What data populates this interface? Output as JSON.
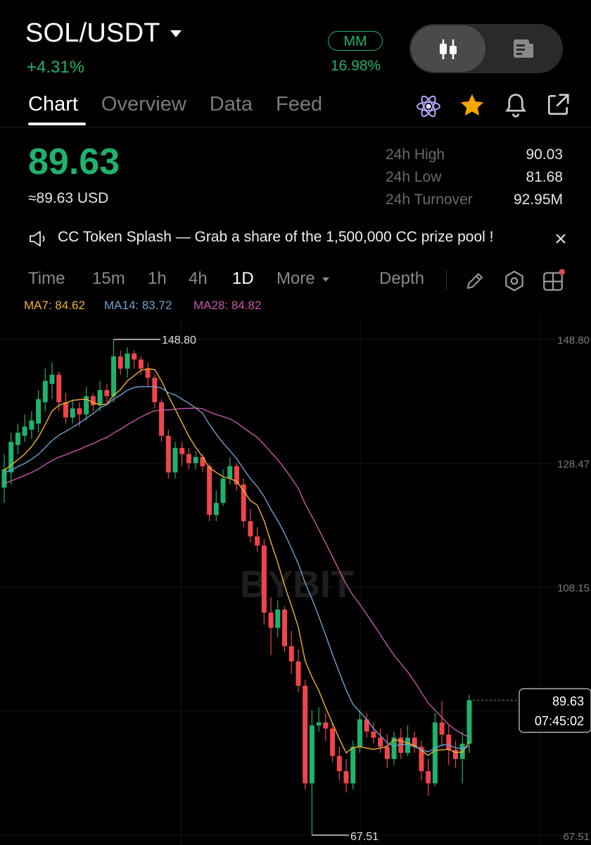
{
  "header": {
    "pair": "SOL/USDT",
    "change": "+4.31%",
    "mm_label": "MM",
    "mm_value": "16.98%"
  },
  "tabs": [
    {
      "label": "Chart",
      "active": true
    },
    {
      "label": "Overview",
      "active": false
    },
    {
      "label": "Data",
      "active": false
    },
    {
      "label": "Feed",
      "active": false
    }
  ],
  "ticker": {
    "price": "89.63",
    "usd": "≈89.63 USD",
    "high_label": "24h High",
    "high": "90.03",
    "low_label": "24h Low",
    "low": "81.68",
    "turnover_label": "24h Turnover",
    "turnover": "92.95M"
  },
  "banner": "CC Token Splash — Grab a share of the 1,500,000 CC prize pool !",
  "timeframes": [
    {
      "label": "Time",
      "active": false
    },
    {
      "label": "15m",
      "active": false
    },
    {
      "label": "1h",
      "active": false
    },
    {
      "label": "4h",
      "active": false
    },
    {
      "label": "1D",
      "active": true
    },
    {
      "label": "More",
      "active": false
    }
  ],
  "depth_label": "Depth",
  "ma": {
    "ma7": "MA7: 84.62",
    "ma14": "MA14: 83.72",
    "ma28": "MA28: 84.82"
  },
  "colors": {
    "up": "#20b26c",
    "down": "#ef454a",
    "ma7": "#f0b429",
    "ma14": "#6ea2cf",
    "ma28": "#c857a6"
  },
  "watermark": "BYBIT",
  "chart_data": {
    "type": "candlestick",
    "y_ticks": [
      "148.80",
      "128.47",
      "108.15",
      "67.51"
    ],
    "ylim": [
      67.51,
      148.8
    ],
    "high_marker": "148.80",
    "low_marker": "67.51",
    "last_price": "89.63",
    "countdown": "07:45:02",
    "candles": [
      {
        "o": 124.5,
        "c": 127.5,
        "h": 130.0,
        "l": 122.0
      },
      {
        "o": 127.0,
        "c": 132.0,
        "h": 133.5,
        "l": 125.0
      },
      {
        "o": 131.5,
        "c": 133.5,
        "h": 135.0,
        "l": 130.0
      },
      {
        "o": 133.0,
        "c": 134.5,
        "h": 136.5,
        "l": 132.0
      },
      {
        "o": 134.0,
        "c": 135.5,
        "h": 137.0,
        "l": 132.5
      },
      {
        "o": 135.0,
        "c": 139.0,
        "h": 140.5,
        "l": 133.5
      },
      {
        "o": 138.5,
        "c": 142.0,
        "h": 144.0,
        "l": 137.0
      },
      {
        "o": 141.5,
        "c": 143.0,
        "h": 145.0,
        "l": 139.0
      },
      {
        "o": 143.0,
        "c": 138.5,
        "h": 143.5,
        "l": 137.0
      },
      {
        "o": 138.5,
        "c": 136.0,
        "h": 140.0,
        "l": 135.0
      },
      {
        "o": 136.0,
        "c": 137.5,
        "h": 139.0,
        "l": 135.0
      },
      {
        "o": 137.5,
        "c": 136.5,
        "h": 138.5,
        "l": 134.5
      },
      {
        "o": 136.5,
        "c": 139.5,
        "h": 141.0,
        "l": 135.5
      },
      {
        "o": 139.5,
        "c": 138.0,
        "h": 140.0,
        "l": 137.0
      },
      {
        "o": 138.0,
        "c": 140.5,
        "h": 142.0,
        "l": 137.0
      },
      {
        "o": 140.5,
        "c": 139.5,
        "h": 141.5,
        "l": 138.5
      },
      {
        "o": 139.5,
        "c": 146.0,
        "h": 148.8,
        "l": 138.5
      },
      {
        "o": 146.0,
        "c": 144.0,
        "h": 147.0,
        "l": 143.0
      },
      {
        "o": 144.0,
        "c": 146.5,
        "h": 147.5,
        "l": 142.5
      },
      {
        "o": 146.5,
        "c": 145.5,
        "h": 147.0,
        "l": 144.0
      },
      {
        "o": 145.5,
        "c": 144.0,
        "h": 146.0,
        "l": 143.0
      },
      {
        "o": 144.0,
        "c": 142.5,
        "h": 145.0,
        "l": 141.0
      },
      {
        "o": 142.5,
        "c": 138.5,
        "h": 143.0,
        "l": 137.5
      },
      {
        "o": 138.5,
        "c": 133.0,
        "h": 139.0,
        "l": 132.0
      },
      {
        "o": 133.0,
        "c": 127.0,
        "h": 134.0,
        "l": 126.0
      },
      {
        "o": 127.0,
        "c": 131.0,
        "h": 132.0,
        "l": 126.0
      },
      {
        "o": 131.0,
        "c": 130.0,
        "h": 132.0,
        "l": 128.0
      },
      {
        "o": 130.0,
        "c": 128.5,
        "h": 131.0,
        "l": 127.5
      },
      {
        "o": 128.5,
        "c": 129.5,
        "h": 130.5,
        "l": 127.5
      },
      {
        "o": 129.5,
        "c": 128.0,
        "h": 130.0,
        "l": 127.0
      },
      {
        "o": 128.0,
        "c": 120.0,
        "h": 128.5,
        "l": 119.0
      },
      {
        "o": 120.0,
        "c": 122.0,
        "h": 124.0,
        "l": 119.0
      },
      {
        "o": 122.0,
        "c": 126.0,
        "h": 127.5,
        "l": 121.5
      },
      {
        "o": 126.0,
        "c": 128.0,
        "h": 129.5,
        "l": 125.0
      },
      {
        "o": 128.0,
        "c": 125.0,
        "h": 128.5,
        "l": 124.0
      },
      {
        "o": 125.0,
        "c": 119.0,
        "h": 126.0,
        "l": 118.0
      },
      {
        "o": 119.0,
        "c": 116.5,
        "h": 121.0,
        "l": 115.5
      },
      {
        "o": 116.5,
        "c": 115.0,
        "h": 118.0,
        "l": 114.0
      },
      {
        "o": 115.0,
        "c": 104.0,
        "h": 116.0,
        "l": 102.0
      },
      {
        "o": 104.0,
        "c": 101.5,
        "h": 106.5,
        "l": 97.0
      },
      {
        "o": 101.5,
        "c": 104.5,
        "h": 106.0,
        "l": 100.0
      },
      {
        "o": 104.5,
        "c": 98.5,
        "h": 105.0,
        "l": 97.5
      },
      {
        "o": 98.5,
        "c": 96.0,
        "h": 101.0,
        "l": 94.0
      },
      {
        "o": 96.0,
        "c": 92.0,
        "h": 98.0,
        "l": 91.0
      },
      {
        "o": 92.0,
        "c": 76.0,
        "h": 93.0,
        "l": 75.0
      },
      {
        "o": 76.0,
        "c": 85.5,
        "h": 88.0,
        "l": 67.51
      },
      {
        "o": 85.5,
        "c": 86.0,
        "h": 88.5,
        "l": 84.5
      },
      {
        "o": 86.0,
        "c": 85.0,
        "h": 87.5,
        "l": 83.0
      },
      {
        "o": 85.0,
        "c": 80.5,
        "h": 86.0,
        "l": 79.5
      },
      {
        "o": 80.5,
        "c": 78.0,
        "h": 82.0,
        "l": 76.5
      },
      {
        "o": 78.0,
        "c": 76.0,
        "h": 80.0,
        "l": 74.5
      },
      {
        "o": 76.0,
        "c": 82.0,
        "h": 83.0,
        "l": 75.0
      },
      {
        "o": 82.0,
        "c": 86.5,
        "h": 88.0,
        "l": 81.0
      },
      {
        "o": 86.5,
        "c": 84.5,
        "h": 87.5,
        "l": 83.5
      },
      {
        "o": 84.5,
        "c": 83.5,
        "h": 86.0,
        "l": 82.5
      },
      {
        "o": 83.5,
        "c": 82.0,
        "h": 85.0,
        "l": 81.0
      },
      {
        "o": 82.0,
        "c": 80.0,
        "h": 84.0,
        "l": 78.5
      },
      {
        "o": 80.0,
        "c": 83.5,
        "h": 84.5,
        "l": 79.0
      },
      {
        "o": 83.5,
        "c": 81.0,
        "h": 85.0,
        "l": 80.0
      },
      {
        "o": 81.0,
        "c": 83.5,
        "h": 85.5,
        "l": 80.5
      },
      {
        "o": 83.5,
        "c": 82.0,
        "h": 84.5,
        "l": 81.0
      },
      {
        "o": 82.0,
        "c": 78.0,
        "h": 83.0,
        "l": 76.5
      },
      {
        "o": 78.0,
        "c": 76.0,
        "h": 80.0,
        "l": 74.0
      },
      {
        "o": 76.0,
        "c": 86.0,
        "h": 87.5,
        "l": 75.5
      },
      {
        "o": 86.0,
        "c": 84.0,
        "h": 89.5,
        "l": 82.0
      },
      {
        "o": 84.0,
        "c": 81.5,
        "h": 85.5,
        "l": 79.0
      },
      {
        "o": 81.5,
        "c": 80.0,
        "h": 83.0,
        "l": 78.5
      },
      {
        "o": 80.0,
        "c": 82.5,
        "h": 84.5,
        "l": 76.0
      },
      {
        "o": 82.5,
        "c": 89.63,
        "h": 90.5,
        "l": 81.0
      }
    ]
  }
}
